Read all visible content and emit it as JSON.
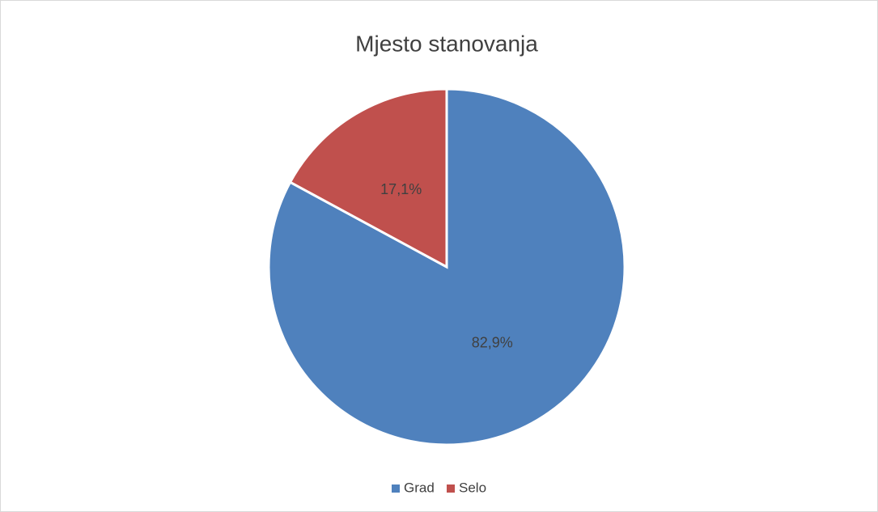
{
  "chart_data": {
    "type": "pie",
    "title": "Mjesto stanovanja",
    "categories": [
      "Grad",
      "Selo"
    ],
    "values": [
      82.9,
      17.1
    ],
    "value_labels": [
      "82,9%",
      "17,1%"
    ],
    "colors": [
      "#4f81bd",
      "#c0504d"
    ],
    "legend": "bottom"
  }
}
